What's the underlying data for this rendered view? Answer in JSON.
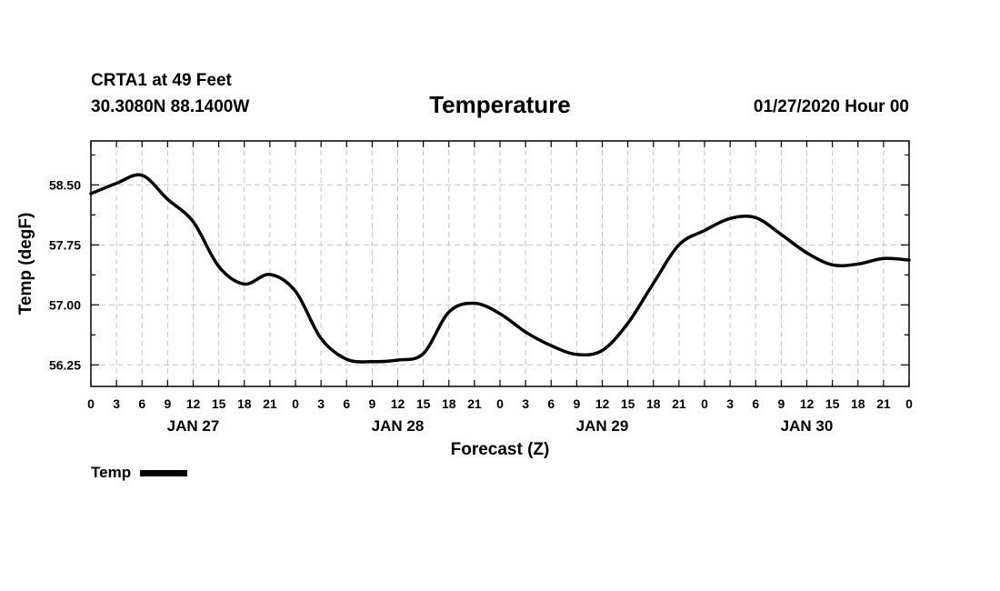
{
  "header": {
    "station": "CRTA1 at 49 Feet",
    "coords": "30.3080N 88.1400W",
    "title": "Temperature",
    "run_time": "01/27/2020 Hour 00"
  },
  "chart_data": {
    "type": "line",
    "title": "Temperature",
    "xlabel": "Forecast (Z)",
    "ylabel": "Temp (degF)",
    "x_range_hours": [
      0,
      96
    ],
    "x_tick_step_hours": 3,
    "x_tick_labels": [
      "0",
      "3",
      "6",
      "9",
      "12",
      "15",
      "18",
      "21",
      "0",
      "3",
      "6",
      "9",
      "12",
      "15",
      "18",
      "21",
      "0",
      "3",
      "6",
      "9",
      "12",
      "15",
      "18",
      "21",
      "0",
      "3",
      "6",
      "9",
      "12",
      "15",
      "18",
      "21",
      "0"
    ],
    "day_labels": [
      {
        "label": "JAN 27",
        "hour": 12
      },
      {
        "label": "JAN 28",
        "hour": 36
      },
      {
        "label": "JAN 29",
        "hour": 60
      },
      {
        "label": "JAN 30",
        "hour": 84
      }
    ],
    "ylim": [
      55.98,
      59.05
    ],
    "y_ticks": [
      56.25,
      57.0,
      57.75,
      58.5
    ],
    "y_tick_labels": [
      "56.25",
      "57.00",
      "57.75",
      "58.50"
    ],
    "grid": true,
    "legend": {
      "position": "bottom-left",
      "label": "Temp"
    },
    "series": [
      {
        "name": "Temp",
        "color": "#000000",
        "x": [
          0,
          3,
          6,
          9,
          12,
          15,
          18,
          21,
          24,
          27,
          30,
          33,
          36,
          39,
          42,
          45,
          48,
          51,
          54,
          57,
          60,
          63,
          66,
          69,
          72,
          75,
          78,
          81,
          84,
          87,
          90,
          93,
          96
        ],
        "values": [
          58.39,
          58.52,
          58.62,
          58.32,
          58.04,
          57.48,
          57.26,
          57.38,
          57.17,
          56.58,
          56.32,
          56.29,
          56.31,
          56.39,
          56.91,
          57.02,
          56.89,
          56.66,
          56.49,
          56.38,
          56.43,
          56.77,
          57.27,
          57.75,
          57.93,
          58.08,
          58.09,
          57.88,
          57.65,
          57.5,
          57.51,
          57.58,
          57.56
        ]
      }
    ]
  }
}
